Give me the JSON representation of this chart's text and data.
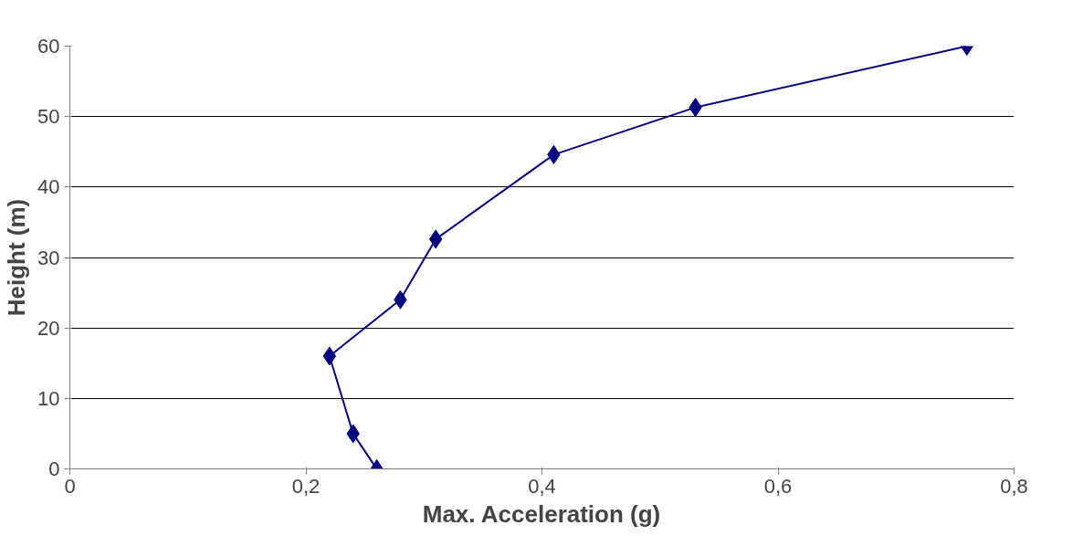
{
  "chart_data": {
    "type": "line",
    "xlabel": "Max. Acceleration (g)",
    "ylabel": "Height (m)",
    "x": [
      0.26,
      0.24,
      0.22,
      0.28,
      0.31,
      0.41,
      0.53,
      0.76
    ],
    "series": [
      {
        "color": "#000080",
        "values": [
          0,
          5,
          16,
          24,
          32.6,
          44.6,
          51.3,
          60
        ]
      }
    ],
    "xlim": [
      0,
      0.8
    ],
    "ylim": [
      0,
      60
    ],
    "xticks": [
      0,
      {
        "value": 0.2,
        "label": "0,2"
      },
      {
        "value": 0.4,
        "label": "0,4"
      },
      {
        "value": 0.6,
        "label": "0,6"
      },
      {
        "value": 0.8,
        "label": "0,8"
      }
    ],
    "yticks": [
      0,
      10,
      20,
      30,
      40,
      50,
      60
    ],
    "grid": "y",
    "marker": "diamond",
    "line_style": "solid"
  }
}
